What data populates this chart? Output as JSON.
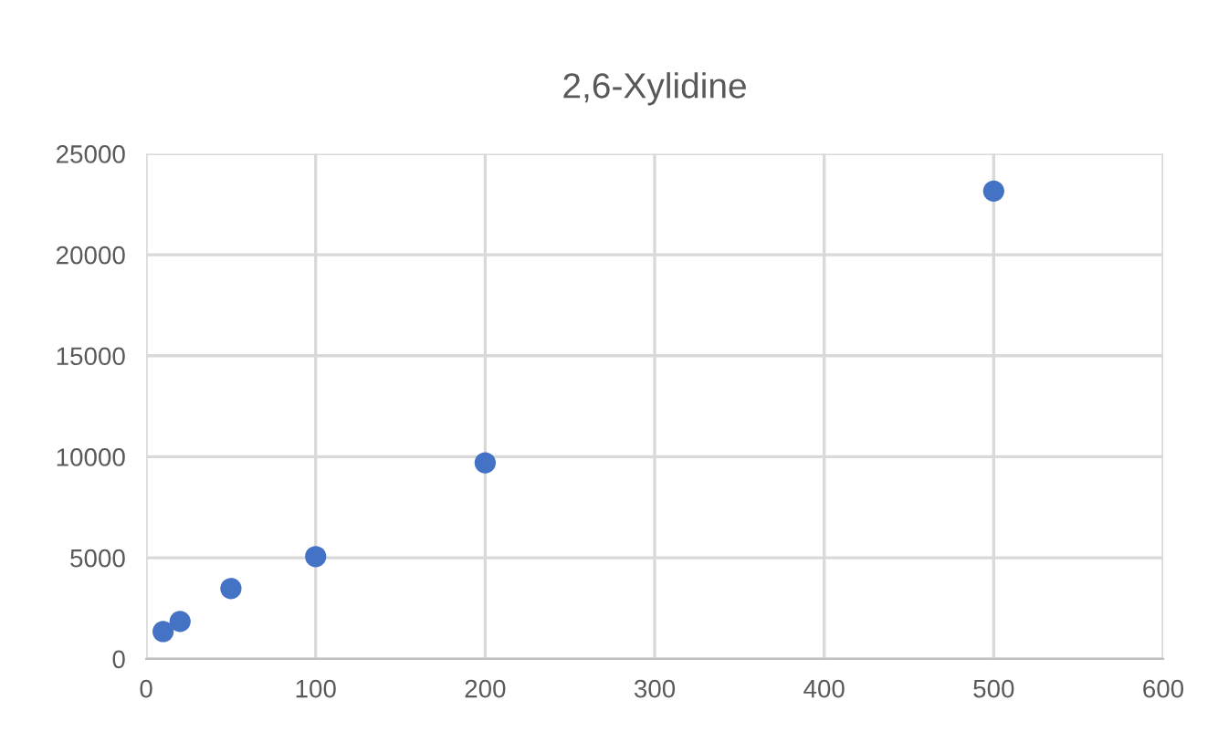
{
  "chart_data": {
    "type": "scatter",
    "title": "2,6-Xylidine",
    "x": [
      10,
      20,
      50,
      100,
      200,
      500
    ],
    "values": [
      1350,
      1850,
      3480,
      5060,
      9700,
      23150
    ],
    "color": "#4472c4",
    "marker": "circle",
    "xlim": [
      0,
      600
    ],
    "xticks": [
      0,
      100,
      200,
      300,
      400,
      500,
      600
    ],
    "ylim": [
      0,
      25000
    ],
    "yticks": [
      0,
      5000,
      10000,
      15000,
      20000,
      25000
    ],
    "grid": true
  }
}
